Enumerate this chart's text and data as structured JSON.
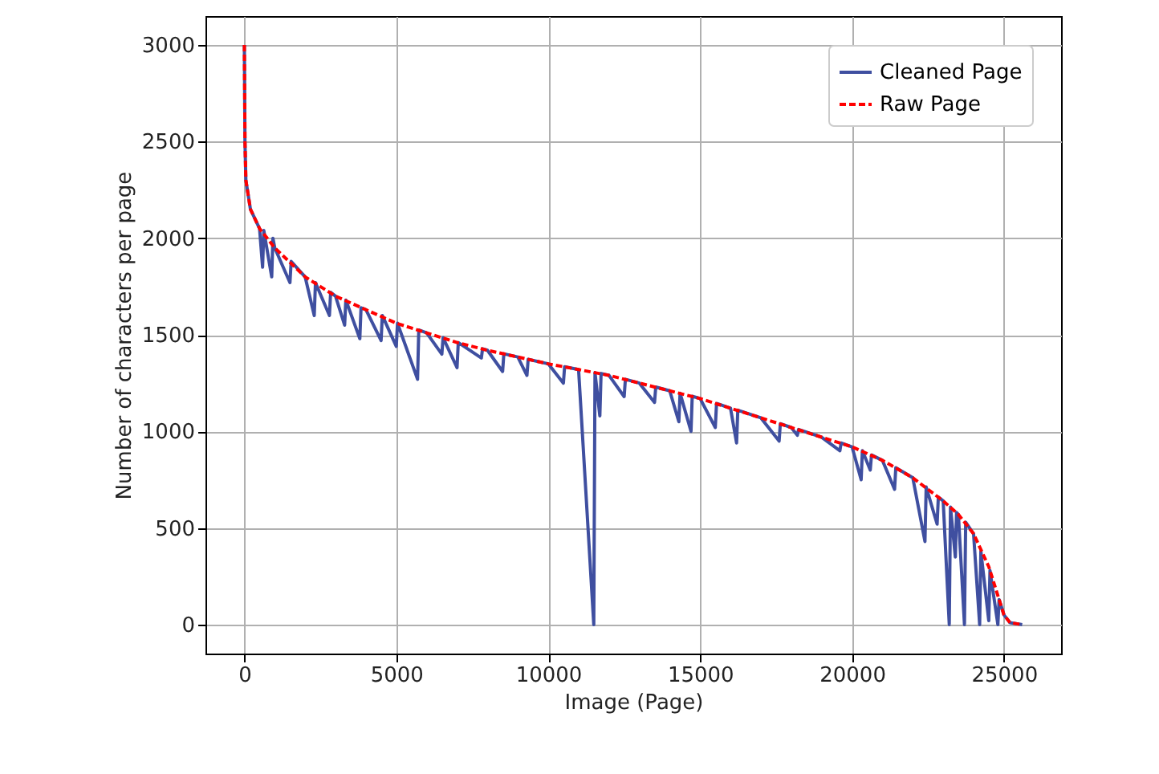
{
  "chart_data": {
    "type": "line",
    "xlabel": "Image (Page)",
    "ylabel": "Number of characters per page",
    "xlim": [
      -1280,
      26880
    ],
    "ylim": [
      -150,
      3150
    ],
    "xticks": [
      0,
      5000,
      10000,
      15000,
      20000,
      25000
    ],
    "yticks": [
      0,
      500,
      1000,
      1500,
      2000,
      2500,
      3000
    ],
    "grid": true,
    "legend": "top right",
    "series": [
      {
        "name": "Cleaned Page",
        "color": "#3f4fa0",
        "line_style": "solid",
        "x": [
          0,
          20,
          50,
          200,
          500,
          600,
          640,
          900,
          940,
          1000,
          1500,
          1540,
          2000,
          2300,
          2340,
          2800,
          2840,
          3000,
          3300,
          3340,
          3800,
          3840,
          4000,
          4500,
          4540,
          5000,
          5040,
          5700,
          5740,
          6000,
          6500,
          6540,
          7000,
          7040,
          7800,
          7840,
          8000,
          8500,
          8540,
          9000,
          9300,
          9340,
          10000,
          10500,
          10540,
          11000,
          11500,
          11540,
          11700,
          11740,
          12000,
          12500,
          12540,
          13000,
          13500,
          13540,
          14000,
          14300,
          14340,
          14700,
          14740,
          15000,
          15500,
          15540,
          16000,
          16200,
          16240,
          17000,
          17600,
          17640,
          18000,
          18200,
          18240,
          19000,
          19600,
          19640,
          20000,
          20300,
          20340,
          20600,
          20640,
          21000,
          21400,
          21440,
          22000,
          22400,
          22440,
          22800,
          22840,
          23000,
          23200,
          23240,
          23400,
          23440,
          23500,
          23700,
          23740,
          24000,
          24200,
          24240,
          24500,
          24540,
          24800,
          24840,
          25000,
          25200,
          25600
        ],
        "values": [
          3000,
          2500,
          2300,
          2150,
          2050,
          1850,
          2040,
          1800,
          2000,
          1950,
          1770,
          1880,
          1800,
          1600,
          1770,
          1600,
          1720,
          1700,
          1550,
          1680,
          1480,
          1640,
          1630,
          1470,
          1600,
          1440,
          1560,
          1270,
          1525,
          1510,
          1400,
          1485,
          1330,
          1460,
          1380,
          1428,
          1420,
          1310,
          1402,
          1385,
          1290,
          1373,
          1350,
          1250,
          1335,
          1320,
          0,
          1305,
          1080,
          1300,
          1290,
          1180,
          1270,
          1250,
          1150,
          1230,
          1210,
          1050,
          1198,
          1000,
          1182,
          1170,
          1020,
          1145,
          1120,
          940,
          1110,
          1070,
          950,
          1040,
          1020,
          980,
          1010,
          970,
          900,
          940,
          920,
          750,
          900,
          800,
          878,
          850,
          700,
          812,
          760,
          430,
          712,
          520,
          660,
          640,
          0,
          608,
          350,
          580,
          570,
          0,
          530,
          470,
          0,
          380,
          20,
          280,
          0,
          130,
          50,
          10,
          0
        ]
      },
      {
        "name": "Raw Page",
        "color": "#ff0000",
        "line_style": "dashed",
        "x": [
          0,
          20,
          50,
          200,
          500,
          1000,
          2000,
          3000,
          4000,
          5000,
          6000,
          7000,
          8000,
          9000,
          10000,
          11000,
          12000,
          13000,
          14000,
          15000,
          16000,
          17000,
          18000,
          19000,
          20000,
          21000,
          22000,
          23000,
          23500,
          24000,
          24500,
          24800,
          25000,
          25200,
          25600
        ],
        "values": [
          3000,
          2500,
          2300,
          2150,
          2050,
          1950,
          1800,
          1700,
          1630,
          1560,
          1510,
          1460,
          1420,
          1385,
          1350,
          1320,
          1290,
          1250,
          1210,
          1170,
          1120,
          1070,
          1020,
          970,
          920,
          850,
          760,
          640,
          570,
          470,
          300,
          150,
          50,
          10,
          0
        ]
      }
    ]
  }
}
